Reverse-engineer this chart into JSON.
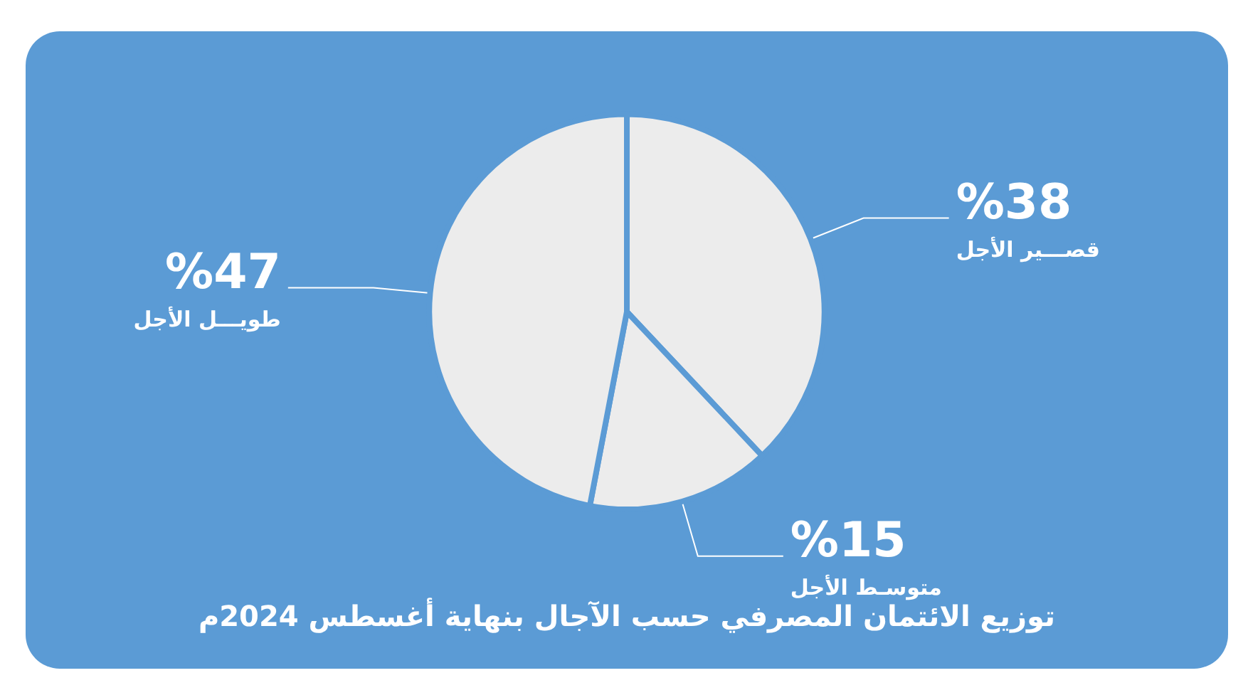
{
  "chart_data": {
    "type": "pie",
    "title": "توزيع الائتمان المصرفي حسب الآجال بنهاية أغسطس 2024م",
    "categories": [
      "قصـــير الأجل",
      "متوسـط الأجل",
      "طويـــل الأجل"
    ],
    "values": [
      38,
      15,
      47
    ],
    "value_labels": [
      "%38",
      "%15",
      "%47"
    ],
    "colors": [
      "#ececec",
      "#ececec",
      "#ececec"
    ],
    "legend": false
  }
}
